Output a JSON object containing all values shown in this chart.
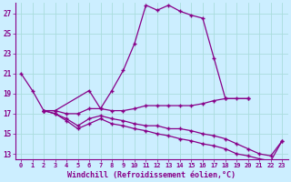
{
  "xlabel": "Windchill (Refroidissement éolien,°C)",
  "background_color": "#cceeff",
  "grid_color": "#aadddd",
  "line_color": "#880088",
  "xlim": [
    -0.5,
    23.5
  ],
  "ylim": [
    12.5,
    28.0
  ],
  "yticks": [
    13,
    15,
    17,
    19,
    21,
    23,
    25,
    27
  ],
  "xticks": [
    0,
    1,
    2,
    3,
    4,
    5,
    6,
    7,
    8,
    9,
    10,
    11,
    12,
    13,
    14,
    15,
    16,
    17,
    18,
    19,
    20,
    21,
    22,
    23
  ],
  "series": [
    {
      "x": [
        0,
        1,
        2,
        3,
        6,
        7,
        8,
        9,
        10,
        11,
        12,
        13,
        14,
        15,
        16,
        17,
        18,
        20
      ],
      "y": [
        21.0,
        19.3,
        17.3,
        17.3,
        19.3,
        17.5,
        19.3,
        21.3,
        24.0,
        27.8,
        27.3,
        27.8,
        27.2,
        26.8,
        26.5,
        22.5,
        18.5,
        18.5
      ]
    },
    {
      "x": [
        2,
        3,
        4,
        5,
        6,
        7,
        8,
        9,
        10,
        11,
        12,
        13,
        14,
        15,
        16,
        17,
        18,
        19,
        20
      ],
      "y": [
        17.3,
        17.3,
        17.0,
        17.0,
        17.5,
        17.5,
        17.3,
        17.3,
        17.5,
        17.8,
        17.8,
        17.8,
        17.8,
        17.8,
        18.0,
        18.3,
        18.5,
        18.5,
        18.5
      ]
    },
    {
      "x": [
        2,
        3,
        4,
        5,
        6,
        7,
        8,
        9,
        10,
        11,
        12,
        13,
        14,
        15,
        16,
        17,
        18,
        19,
        20,
        21,
        22,
        23
      ],
      "y": [
        17.3,
        17.0,
        16.5,
        15.8,
        16.5,
        16.8,
        16.5,
        16.3,
        16.0,
        15.8,
        15.8,
        15.5,
        15.5,
        15.3,
        15.0,
        14.8,
        14.5,
        14.0,
        13.5,
        13.0,
        12.8,
        14.3
      ]
    },
    {
      "x": [
        2,
        3,
        4,
        5,
        6,
        7,
        8,
        9,
        10,
        11,
        12,
        13,
        14,
        15,
        16,
        17,
        18,
        19,
        20,
        21,
        22,
        23
      ],
      "y": [
        17.3,
        17.0,
        16.3,
        15.5,
        16.0,
        16.5,
        16.0,
        15.8,
        15.5,
        15.3,
        15.0,
        14.8,
        14.5,
        14.3,
        14.0,
        13.8,
        13.5,
        13.0,
        12.8,
        12.5,
        12.3,
        14.3
      ]
    }
  ]
}
